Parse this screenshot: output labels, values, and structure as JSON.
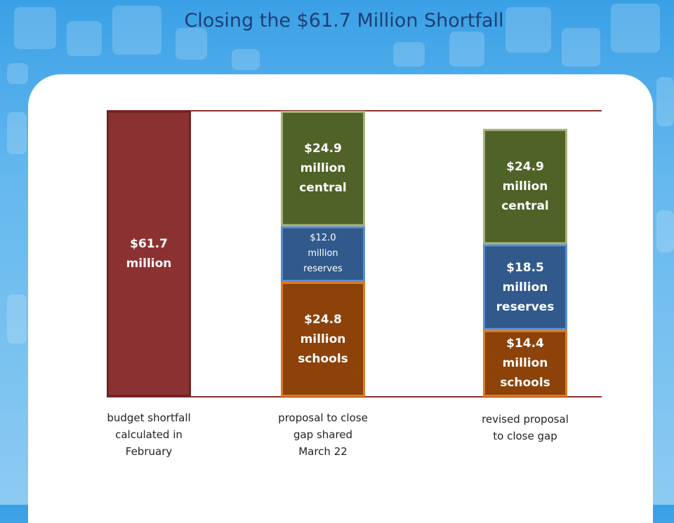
{
  "title": "Closing the $61.7 Million Shortfall",
  "colors": {
    "shortfall": "#8c3131",
    "central": "#4f6228",
    "reserves": "#31598c",
    "schools": "#8c4209",
    "shortfall_border": "#6f2222",
    "central_border": "#a9b17a",
    "reserves_border": "#5a8ed0",
    "schools_border": "#e07a22"
  },
  "chart_data": {
    "type": "bar",
    "stacked": true,
    "ylim": [
      0,
      61.7
    ],
    "categories": [
      "budget shortfall calculated in February",
      "proposal to close gap shared March 22",
      "revised proposal to close gap"
    ],
    "bars": [
      {
        "category_lines": [
          "budget shortfall",
          "calculated in",
          "February"
        ],
        "segments": [
          {
            "key": "shortfall",
            "value": 61.7,
            "label_lines": [
              "$61.7",
              "million"
            ],
            "small": false
          }
        ]
      },
      {
        "category_lines": [
          "proposal to close",
          "gap shared",
          "March 22"
        ],
        "segments": [
          {
            "key": "schools",
            "value": 24.8,
            "label_lines": [
              "$24.8",
              "million",
              "schools"
            ],
            "small": false
          },
          {
            "key": "reserves",
            "value": 12.0,
            "label_lines": [
              "$12.0",
              "million",
              "reserves"
            ],
            "small": true
          },
          {
            "key": "central",
            "value": 24.9,
            "label_lines": [
              "$24.9",
              "million",
              "central"
            ],
            "small": false
          }
        ]
      },
      {
        "category_lines": [
          "revised proposal",
          "to close gap"
        ],
        "segments": [
          {
            "key": "schools",
            "value": 14.4,
            "label_lines": [
              "$14.4",
              "million",
              "schools"
            ],
            "small": false
          },
          {
            "key": "reserves",
            "value": 18.5,
            "label_lines": [
              "$18.5",
              "million",
              "reserves"
            ],
            "small": false
          },
          {
            "key": "central",
            "value": 24.9,
            "label_lines": [
              "$24.9",
              "million",
              "central"
            ],
            "small": false
          }
        ]
      }
    ]
  }
}
